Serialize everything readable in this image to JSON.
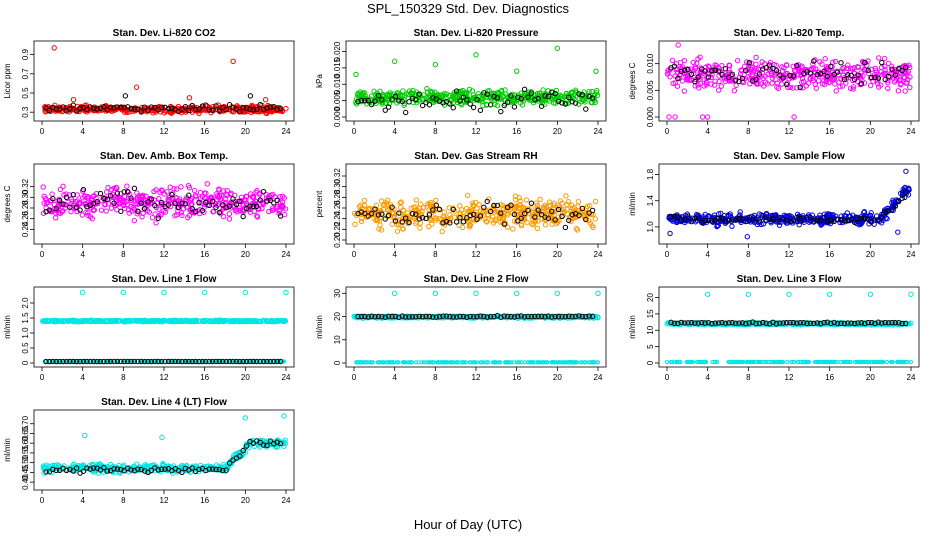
{
  "title": "SPL_150329  Std. Dev. Diagnostics",
  "xlabel": "Hour of Day (UTC)",
  "chart_data": [
    {
      "type": "scatter",
      "title": "Stan. Dev. Li-820 CO2",
      "ylabel": "Licor ppm",
      "color": "#ff0000",
      "xlim": [
        0,
        24
      ],
      "xticks": [
        0,
        4,
        8,
        12,
        16,
        20,
        24
      ],
      "ylim": [
        0.25,
        1.0
      ],
      "yticks": [
        "0.3",
        "0.5",
        "0.7",
        "0.9"
      ],
      "series": [
        {
          "marker": "colored",
          "base": 0.33,
          "spread": 0.03,
          "outliers": [
            [
              1.2,
              0.97
            ],
            [
              9.3,
              0.56
            ],
            [
              18.8,
              0.83
            ],
            [
              14.5,
              0.45
            ],
            [
              3.1,
              0.43
            ],
            [
              22.0,
              0.43
            ]
          ]
        },
        {
          "marker": "black",
          "base": 0.34,
          "spread": 0.03,
          "outliers": [
            [
              8.2,
              0.47
            ],
            [
              20.5,
              0.47
            ]
          ]
        }
      ]
    },
    {
      "type": "scatter",
      "title": "Stan. Dev. Li-820 Pressure",
      "ylabel": "kPa",
      "color": "#00cc00",
      "xlim": [
        0,
        24
      ],
      "xticks": [
        0,
        4,
        8,
        12,
        16,
        20,
        24
      ],
      "ylim": [
        0.0,
        0.022
      ],
      "yticks": [
        "0.000",
        "0.005",
        "0.010",
        "0.015",
        "0.020"
      ],
      "series": [
        {
          "marker": "colored",
          "base": 0.006,
          "spread": 0.002,
          "outliers": [
            [
              0.2,
              0.013
            ],
            [
              4.0,
              0.017
            ],
            [
              8.0,
              0.016
            ],
            [
              12.0,
              0.019
            ],
            [
              16.0,
              0.014
            ],
            [
              20.0,
              0.021
            ],
            [
              23.8,
              0.014
            ]
          ]
        },
        {
          "marker": "black",
          "base": 0.005,
          "spread": 0.0025,
          "outliers": []
        }
      ]
    },
    {
      "type": "scatter",
      "title": "Stan. Dev. Li-820 Temp.",
      "ylabel": "degrees C",
      "color": "#ff00ff",
      "xlim": [
        0,
        24
      ],
      "xticks": [
        0,
        4,
        8,
        12,
        16,
        20,
        24
      ],
      "ylim": [
        0.0,
        0.0135
      ],
      "yticks": [
        "0.000",
        "0.005",
        "0.010"
      ],
      "series": [
        {
          "marker": "colored",
          "base": 0.008,
          "spread": 0.0025,
          "outliers": [
            [
              0.2,
              0.0
            ],
            [
              0.8,
              0.0
            ],
            [
              3.5,
              0.0
            ],
            [
              4.0,
              0.0
            ],
            [
              12.5,
              0.0
            ],
            [
              1.1,
              0.0135
            ]
          ]
        },
        {
          "marker": "black",
          "base": 0.008,
          "spread": 0.002,
          "outliers": []
        }
      ]
    },
    {
      "type": "scatter",
      "title": "Stan. Dev. Amb. Box Temp.",
      "ylabel": "degrees C",
      "color": "#ff00ff",
      "xlim": [
        0,
        24
      ],
      "xticks": [
        0,
        4,
        8,
        12,
        16,
        20,
        24
      ],
      "ylim": [
        0.22,
        0.355
      ],
      "yticks": [
        "0.24",
        "0.26",
        "0.28",
        "0.30",
        "0.32"
      ],
      "series": [
        {
          "marker": "colored",
          "base": 0.29,
          "spread": 0.025,
          "outliers": []
        },
        {
          "marker": "black",
          "base": 0.29,
          "spread": 0.022,
          "outliers": []
        }
      ]
    },
    {
      "type": "scatter",
      "title": "Stan. Dev. Gas Stream RH",
      "ylabel": "percent",
      "color": "#ff9900",
      "xlim": [
        0,
        24
      ],
      "xticks": [
        0,
        4,
        8,
        12,
        16,
        20,
        24
      ],
      "ylim": [
        0.2,
        0.335
      ],
      "yticks": [
        "0.20",
        "0.22",
        "0.24",
        "0.26",
        "0.28",
        "0.30",
        "0.32"
      ],
      "series": [
        {
          "marker": "colored",
          "base": 0.25,
          "spread": 0.025,
          "outliers": []
        },
        {
          "marker": "black",
          "base": 0.25,
          "spread": 0.02,
          "outliers": []
        }
      ]
    },
    {
      "type": "scatter",
      "title": "Stan. Dev. Sample Flow",
      "ylabel": "ml/min",
      "color": "#0000dd",
      "xlim": [
        0,
        24
      ],
      "xticks": [
        0,
        4,
        8,
        12,
        16,
        20,
        24
      ],
      "ylim": [
        0.8,
        1.9
      ],
      "yticks": [
        "1.0",
        "1.4",
        "1.8"
      ],
      "series": [
        {
          "marker": "colored",
          "base": 1.12,
          "spread": 0.08,
          "rise_from": 21.0,
          "rise_to": 1.55,
          "outliers": [
            [
              0.3,
              0.9
            ],
            [
              7.9,
              0.85
            ],
            [
              23.5,
              1.85
            ],
            [
              22.7,
              0.92
            ]
          ]
        },
        {
          "marker": "black",
          "base": 1.12,
          "spread": 0.05,
          "rise_from": 21.0,
          "rise_to": 1.5,
          "outliers": []
        }
      ]
    },
    {
      "type": "scatter",
      "title": "Stan. Dev. Line 1 Flow",
      "ylabel": "ml/min",
      "color": "#00e5e5",
      "xlim": [
        0,
        24
      ],
      "xticks": [
        0,
        4,
        8,
        12,
        16,
        20,
        24
      ],
      "ylim": [
        0,
        2.4
      ],
      "yticks": [
        "0",
        "0.5",
        "1.0",
        "1.5",
        "2.0"
      ],
      "series": [
        {
          "marker": "colored",
          "base": 1.4,
          "spread": 0.02,
          "second_base": 0.05,
          "outliers": [
            [
              4.0,
              2.35
            ],
            [
              8.0,
              2.35
            ],
            [
              12.0,
              2.35
            ],
            [
              16.0,
              2.35
            ],
            [
              20.0,
              2.35
            ],
            [
              24.0,
              2.35
            ]
          ]
        },
        {
          "marker": "black",
          "base": 0.05,
          "spread": 0.002,
          "outliers": []
        }
      ]
    },
    {
      "type": "scatter",
      "title": "Stan. Dev. Line 2 Flow",
      "ylabel": "ml/min",
      "color": "#00e5e5",
      "xlim": [
        0,
        24
      ],
      "xticks": [
        0,
        4,
        8,
        12,
        16,
        20,
        24
      ],
      "ylim": [
        0,
        31
      ],
      "yticks": [
        "0",
        "10",
        "20",
        "30"
      ],
      "series": [
        {
          "marker": "colored",
          "base": 19.8,
          "spread": 0.4,
          "second_base": 0.3,
          "outliers": [
            [
              4.0,
              30.0
            ],
            [
              8.0,
              30.0
            ],
            [
              12.0,
              30.0
            ],
            [
              16.0,
              30.0
            ],
            [
              20.0,
              30.0
            ],
            [
              24.0,
              30.0
            ]
          ]
        },
        {
          "marker": "black",
          "base": 20.0,
          "spread": 0.3,
          "outliers": []
        }
      ]
    },
    {
      "type": "scatter",
      "title": "Stan. Dev. Line 3 Flow",
      "ylabel": "ml/min",
      "color": "#00e5e5",
      "xlim": [
        0,
        24
      ],
      "xticks": [
        0,
        4,
        8,
        12,
        16,
        20,
        24
      ],
      "ylim": [
        0,
        22
      ],
      "yticks": [
        "0",
        "5",
        "10",
        "15",
        "20"
      ],
      "series": [
        {
          "marker": "colored",
          "base": 12.0,
          "spread": 0.3,
          "second_base": 0.3,
          "outliers": [
            [
              4.0,
              21.0
            ],
            [
              8.0,
              21.0
            ],
            [
              12.0,
              21.0
            ],
            [
              16.0,
              21.0
            ],
            [
              20.0,
              21.0
            ],
            [
              24.0,
              21.0
            ]
          ]
        },
        {
          "marker": "black",
          "base": 12.2,
          "spread": 0.25,
          "outliers": []
        }
      ]
    },
    {
      "type": "scatter",
      "title": "Stan. Dev. Line 4 (LT) Flow",
      "ylabel": "ml/min",
      "color": "#00e5e5",
      "xlim": [
        0,
        24
      ],
      "xticks": [
        0,
        4,
        8,
        12,
        16,
        20,
        24
      ],
      "ylim": [
        0.38,
        0.75
      ],
      "yticks": [
        "0.40",
        "0.45",
        "0.50",
        "0.55",
        "0.60",
        "0.65",
        "0.70"
      ],
      "series": [
        {
          "marker": "colored",
          "base": 0.47,
          "spread": 0.02,
          "rise_from": 18.0,
          "rise_to": 0.6,
          "outliers": [
            [
              4.2,
              0.64
            ],
            [
              11.8,
              0.63
            ],
            [
              20.0,
              0.73
            ],
            [
              23.8,
              0.74
            ]
          ]
        },
        {
          "marker": "black",
          "base": 0.46,
          "spread": 0.015,
          "rise_from": 18.0,
          "rise_to": 0.6,
          "outliers": []
        }
      ]
    }
  ]
}
